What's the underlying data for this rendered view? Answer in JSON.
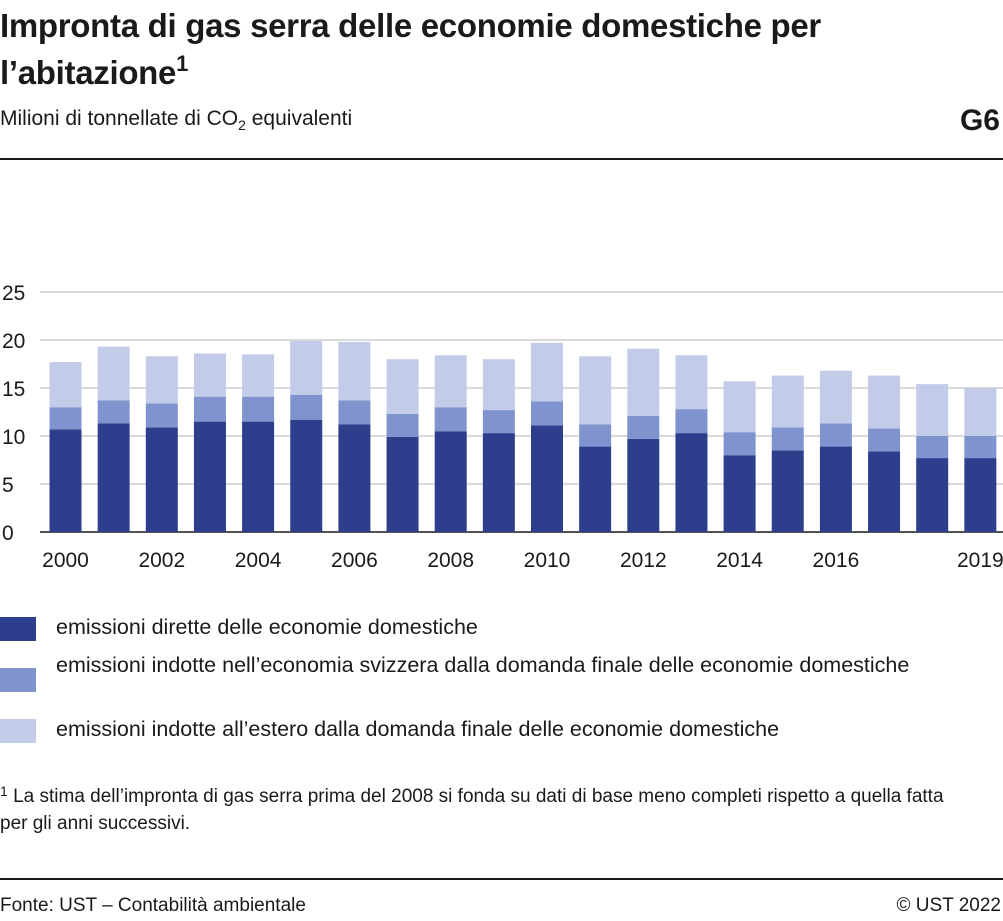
{
  "header": {
    "title": "Impronta di gas serra delle economie domestiche per l’abitazione",
    "title_note": "1",
    "subtitle_before": "Milioni di tonnellate di CO",
    "subtitle_sub": "2",
    "subtitle_after": " equivalenti",
    "code": "G6"
  },
  "chart_data": {
    "type": "bar",
    "stacked": true,
    "categories": [
      "2000",
      "2001",
      "2002",
      "2003",
      "2004",
      "2005",
      "2006",
      "2007",
      "2008",
      "2009",
      "2010",
      "2011",
      "2012",
      "2013",
      "2014",
      "2015",
      "2016",
      "2017",
      "2018",
      "2019"
    ],
    "x_tick_labels": [
      "2000",
      "2002",
      "2004",
      "2006",
      "2008",
      "2010",
      "2012",
      "2014",
      "2016",
      "2019"
    ],
    "yticks": [
      0,
      5,
      10,
      15,
      20,
      25
    ],
    "ylim": [
      0,
      25
    ],
    "grid": true,
    "legend_placement": "bottom",
    "series": [
      {
        "name": "emissioni dirette delle economie domestiche",
        "color": "#2c3e8c",
        "values": [
          10.7,
          11.3,
          10.9,
          11.5,
          11.5,
          11.7,
          11.2,
          9.9,
          10.5,
          10.3,
          11.1,
          8.9,
          9.7,
          10.3,
          8.0,
          8.5,
          8.9,
          8.4,
          7.7,
          7.7
        ]
      },
      {
        "name": "emissioni indotte nell’economia svizzera dalla domanda finale delle economie domestiche",
        "color": "#7f93cf",
        "values": [
          2.3,
          2.4,
          2.5,
          2.6,
          2.6,
          2.6,
          2.5,
          2.4,
          2.5,
          2.4,
          2.5,
          2.3,
          2.4,
          2.5,
          2.4,
          2.4,
          2.4,
          2.4,
          2.3,
          2.3
        ]
      },
      {
        "name": "emissioni indotte all’estero dalla domanda finale delle economie domestiche",
        "color": "#c2cce9",
        "values": [
          4.7,
          5.6,
          4.9,
          4.5,
          4.4,
          5.6,
          6.1,
          5.7,
          5.4,
          5.3,
          6.1,
          7.1,
          7.0,
          5.6,
          5.3,
          5.4,
          5.5,
          5.5,
          5.4,
          5.0
        ]
      }
    ]
  },
  "footnote": {
    "marker": "1",
    "text": " La stima dell’impronta di gas serra prima del 2008 si fonda su dati di base meno completi rispetto a quella fatta per gli anni successivi."
  },
  "footer": {
    "source": "Fonte: UST – Contabilità ambientale",
    "copyright": "© UST 2022"
  }
}
